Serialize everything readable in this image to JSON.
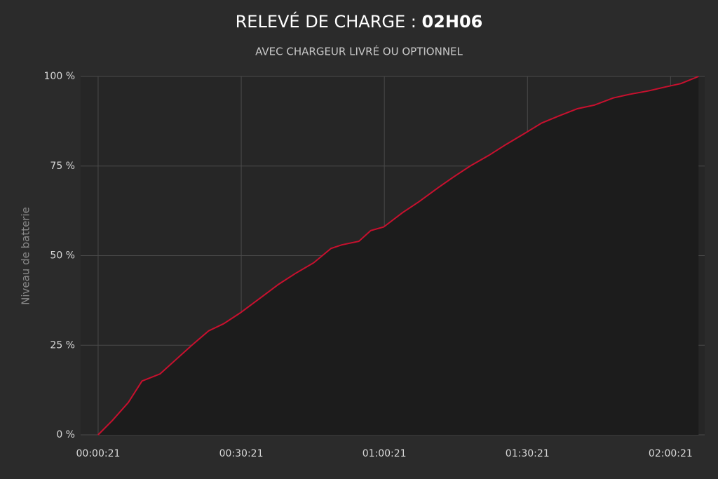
{
  "chart_data": {
    "type": "area",
    "title": "RELEVÉ DE CHARGE :",
    "title_highlight": "02H06",
    "subtitle": "AVEC CHARGEUR LIVRÉ OU OPTIONNEL",
    "y_label": "Niveau de batterie",
    "x": [
      21,
      200,
      400,
      573,
      800,
      1000,
      1200,
      1410,
      1600,
      1807,
      2050,
      2291,
      2500,
      2732,
      2950,
      3085,
      3300,
      3450,
      3613,
      3850,
      4054,
      4300,
      4495,
      4700,
      4937,
      5150,
      5378,
      5600,
      5819,
      6050,
      6261,
      6500,
      6702,
      6950,
      7143,
      7350,
      7573
    ],
    "series": [
      {
        "color": "#c8102e",
        "values": [
          0,
          4,
          9,
          15,
          17,
          21,
          25,
          29,
          31,
          34,
          38,
          42,
          45,
          48,
          52,
          53,
          54,
          57,
          58,
          62,
          65,
          69,
          72,
          75,
          78,
          81,
          84,
          87,
          89,
          91,
          92,
          94,
          95,
          96,
          97,
          98,
          100
        ]
      }
    ],
    "xlim": [
      -199,
      7650
    ],
    "xticks": [
      {
        "value": 21,
        "label": "00:00:21"
      },
      {
        "value": 1821,
        "label": "00:30:21"
      },
      {
        "value": 3621,
        "label": "01:00:21"
      },
      {
        "value": 5421,
        "label": "01:30:21"
      },
      {
        "value": 7221,
        "label": "02:00:21"
      }
    ],
    "ylim": [
      0,
      100
    ],
    "yticks": [
      {
        "value": 0,
        "label": "0 %"
      },
      {
        "value": 25,
        "label": "25 %"
      },
      {
        "value": 50,
        "label": "50 %"
      },
      {
        "value": 75,
        "label": "75 %"
      },
      {
        "value": 100,
        "label": "100 %"
      }
    ],
    "grid": true
  }
}
